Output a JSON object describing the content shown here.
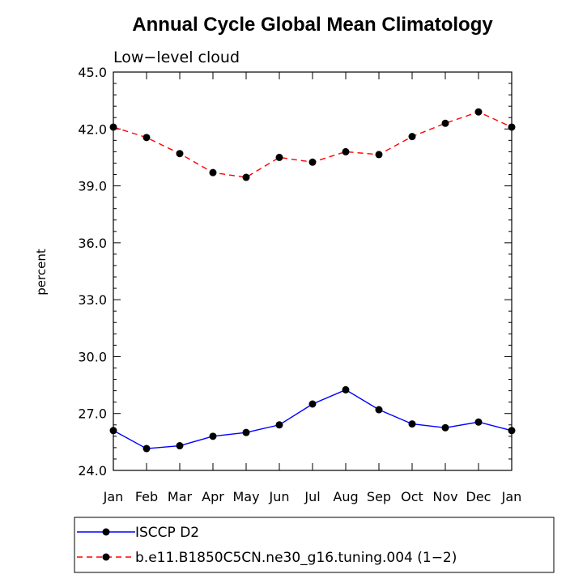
{
  "chart_data": {
    "type": "line",
    "title": "Annual Cycle Global Mean Climatology",
    "subtitle": "Low−level cloud",
    "xlabel": "",
    "ylabel": "percent",
    "ylim": [
      24.0,
      45.0
    ],
    "yticks": [
      "24.0",
      "27.0",
      "30.0",
      "33.0",
      "36.0",
      "39.0",
      "42.0",
      "45.0"
    ],
    "categories": [
      "Jan",
      "Feb",
      "Mar",
      "Apr",
      "May",
      "Jun",
      "Jul",
      "Aug",
      "Sep",
      "Oct",
      "Nov",
      "Dec",
      "Jan"
    ],
    "series": [
      {
        "name": "ISCCP D2",
        "color": "#0000ff",
        "dash": "solid",
        "values": [
          26.1,
          25.15,
          25.3,
          25.8,
          26.0,
          26.4,
          27.5,
          28.25,
          27.2,
          26.45,
          26.25,
          26.55,
          26.1
        ]
      },
      {
        "name": "b.e11.B1850C5CN.ne30_g16.tuning.004 (1−2)",
        "color": "#ff0000",
        "dash": "dashed",
        "values": [
          42.1,
          41.55,
          40.7,
          39.7,
          39.45,
          40.5,
          40.25,
          40.8,
          40.65,
          41.6,
          42.3,
          42.9,
          42.1
        ]
      }
    ],
    "legend_position": "bottom"
  }
}
